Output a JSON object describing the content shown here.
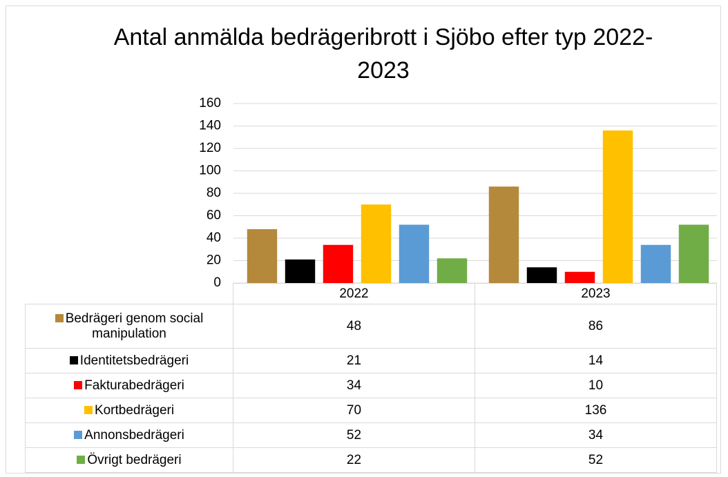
{
  "chart_data": {
    "type": "bar",
    "title": "Antal anmälda bedrägeribrott i Sjöbo efter typ 2022-2023",
    "categories": [
      "2022",
      "2023"
    ],
    "series": [
      {
        "name": "Bedrägeri genom social manipulation",
        "color": "#b5893c",
        "values": [
          48,
          86
        ]
      },
      {
        "name": "Identitetsbedrägeri",
        "color": "#000000",
        "values": [
          21,
          14
        ]
      },
      {
        "name": "Fakturabedrägeri",
        "color": "#ff0000",
        "values": [
          34,
          10
        ]
      },
      {
        "name": "Kortbedrägeri",
        "color": "#ffc000",
        "values": [
          70,
          136
        ]
      },
      {
        "name": "Annonsbedrägeri",
        "color": "#5b9bd5",
        "values": [
          52,
          34
        ]
      },
      {
        "name": "Övrigt bedrägeri",
        "color": "#70ad47",
        "values": [
          22,
          52
        ]
      }
    ],
    "ylim": [
      0,
      160
    ],
    "yticks": [
      0,
      20,
      40,
      60,
      80,
      100,
      120,
      140,
      160
    ],
    "grid": true,
    "data_table": true
  }
}
